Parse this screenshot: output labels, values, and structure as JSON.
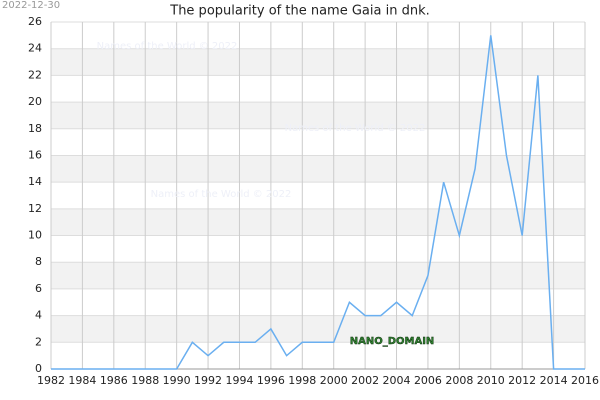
{
  "date_stamp": "2022-12-30",
  "watermarks": [
    "Names of the World © 2022",
    "Names of the World © 2022",
    "Names of the World © 2022"
  ],
  "domain_mark": "NANO_DOMAIN",
  "chart_data": {
    "type": "line",
    "title": "The popularity of the name Gaia in dnk.",
    "x": [
      1982,
      1983,
      1984,
      1985,
      1986,
      1987,
      1988,
      1989,
      1990,
      1991,
      1992,
      1993,
      1994,
      1995,
      1996,
      1997,
      1998,
      1999,
      2000,
      2001,
      2002,
      2003,
      2004,
      2005,
      2006,
      2007,
      2008,
      2009,
      2010,
      2011,
      2012,
      2013,
      2014,
      2015,
      2016
    ],
    "values": [
      0,
      0,
      0,
      0,
      0,
      0,
      0,
      0,
      0,
      2,
      1,
      2,
      2,
      2,
      3,
      1,
      2,
      2,
      2,
      5,
      4,
      4,
      5,
      4,
      7,
      14,
      10,
      15,
      25,
      16,
      10,
      22,
      0,
      0,
      0
    ],
    "color": "#6aaff0",
    "xlim": [
      1982,
      2016
    ],
    "xticks": [
      1982,
      1984,
      1986,
      1988,
      1990,
      1992,
      1994,
      1996,
      1998,
      2000,
      2002,
      2004,
      2006,
      2008,
      2010,
      2012,
      2014,
      2016
    ],
    "ylim": [
      0,
      26
    ],
    "yticks": [
      0,
      2,
      4,
      6,
      8,
      10,
      12,
      14,
      16,
      18,
      20,
      22,
      24,
      26
    ],
    "grid": true,
    "bands": true
  }
}
